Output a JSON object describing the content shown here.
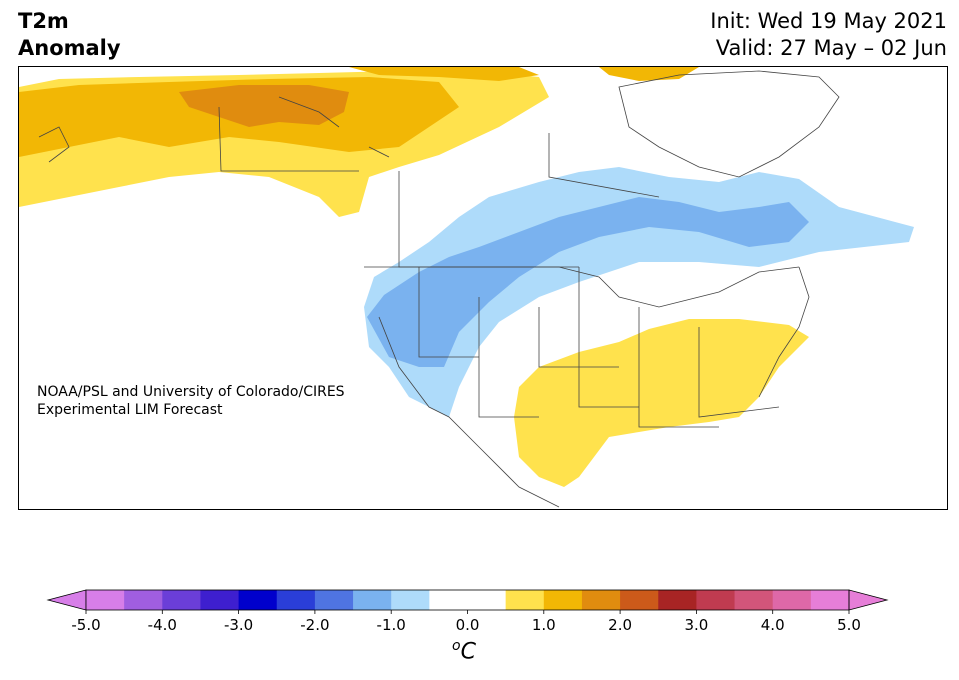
{
  "header": {
    "title_line1": "T2m",
    "title_line2": "Anomaly",
    "init_text": "Init: Wed 19 May 2021",
    "valid_text": "Valid: 27 May – 02 Jun"
  },
  "map": {
    "credit_line1": "NOAA/PSL and University of Colorado/CIRES",
    "credit_line2": "Experimental LIM Forecast",
    "colors": {
      "warm_0.5_1.0": "#ffe24d",
      "warm_1.0_1.5": "#f2b705",
      "warm_1.5_2.0": "#e08c0f",
      "cool_-1.0_-0.5": "#aedbfa",
      "cool_-1.5_-1.0": "#7ab2ef",
      "land": "#ffffff",
      "border": "#444444"
    }
  },
  "colorbar": {
    "unit_main": "C",
    "unit_sup": "o",
    "ticks": [
      "-5.0",
      "-4.0",
      "-3.0",
      "-2.0",
      "-1.0",
      "0.0",
      "1.0",
      "2.0",
      "3.0",
      "4.0",
      "5.0"
    ],
    "colors": [
      "#d77ee8",
      "#a05ee0",
      "#6b3ed8",
      "#3e1fcf",
      "#0000cc",
      "#2a3ed8",
      "#4f74e2",
      "#7ab2ef",
      "#aedbfa",
      "#ffffff",
      "#ffffff",
      "#ffe24d",
      "#f2b705",
      "#e08c0f",
      "#cc5a1a",
      "#a82424",
      "#c03b50",
      "#d2557a",
      "#de68a8",
      "#e67ed8"
    ],
    "under_color": "#d77ee8",
    "over_color": "#e67ed8"
  }
}
